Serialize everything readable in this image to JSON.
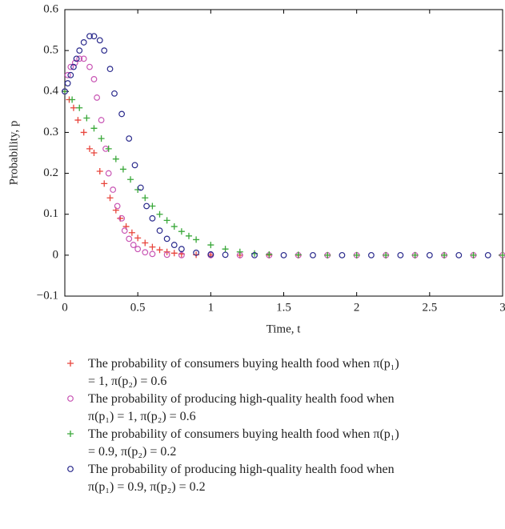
{
  "chart_data": {
    "type": "scatter",
    "xlabel": "Time, t",
    "ylabel": "Probability, p",
    "xlim": [
      0,
      3
    ],
    "ylim": [
      -0.1,
      0.6
    ],
    "xticks": [
      0,
      0.5,
      1,
      1.5,
      2,
      2.5,
      3
    ],
    "yticks": [
      {
        "value": -0.1,
        "label": "−0.1"
      },
      0,
      0.1,
      0.2,
      0.3,
      0.4,
      0.5,
      0.6
    ],
    "series": [
      {
        "name": "The probability of consumers buying health food when π(p₁) = 1, π(p₂) = 0.6",
        "color": "#e8453c",
        "marker": "plus",
        "x": [
          0,
          0.03,
          0.06,
          0.09,
          0.13,
          0.17,
          0.2,
          0.24,
          0.27,
          0.31,
          0.35,
          0.38,
          0.42,
          0.46,
          0.5,
          0.55,
          0.6,
          0.65,
          0.7,
          0.75,
          0.8,
          0.9,
          1.0,
          1.2,
          1.4,
          1.6,
          1.8,
          2.0,
          2.2,
          2.4,
          2.6,
          2.8,
          3.0
        ],
        "values": [
          0.4,
          0.38,
          0.36,
          0.33,
          0.3,
          0.26,
          0.25,
          0.205,
          0.175,
          0.14,
          0.11,
          0.09,
          0.07,
          0.055,
          0.042,
          0.03,
          0.02,
          0.013,
          0.008,
          0.005,
          0.003,
          0.001,
          0.0005,
          0,
          0,
          0,
          0,
          0,
          0,
          0,
          0,
          0,
          0
        ]
      },
      {
        "name": "The probability of producing high-quality health food when π(p₁) = 1, π(p₂) = 0.6",
        "color": "#c855b4",
        "marker": "circle",
        "x": [
          0,
          0.02,
          0.04,
          0.07,
          0.1,
          0.13,
          0.17,
          0.2,
          0.22,
          0.25,
          0.28,
          0.3,
          0.33,
          0.36,
          0.39,
          0.41,
          0.44,
          0.47,
          0.5,
          0.55,
          0.6,
          0.7,
          0.8,
          1.0,
          1.2,
          1.4,
          1.6,
          1.8,
          2.0,
          2.2,
          2.4,
          2.6,
          2.8,
          3.0
        ],
        "values": [
          0.4,
          0.44,
          0.46,
          0.47,
          0.48,
          0.48,
          0.46,
          0.43,
          0.385,
          0.33,
          0.26,
          0.2,
          0.16,
          0.12,
          0.09,
          0.06,
          0.04,
          0.025,
          0.015,
          0.007,
          0.003,
          0.001,
          0,
          0,
          0,
          0,
          0,
          0,
          0,
          0,
          0,
          0,
          0,
          0
        ]
      },
      {
        "name": "The probability of consumers buying health food when π(p₁) = 0.9, π(p₂) = 0.2",
        "color": "#3aa83a",
        "marker": "plus",
        "x": [
          0,
          0.05,
          0.1,
          0.15,
          0.2,
          0.25,
          0.3,
          0.35,
          0.4,
          0.45,
          0.5,
          0.55,
          0.6,
          0.65,
          0.7,
          0.75,
          0.8,
          0.85,
          0.9,
          1.0,
          1.1,
          1.2,
          1.3,
          1.4,
          1.6,
          1.8,
          2.0,
          2.2,
          2.4,
          2.6,
          2.8,
          3.0
        ],
        "values": [
          0.4,
          0.38,
          0.36,
          0.335,
          0.31,
          0.285,
          0.26,
          0.235,
          0.21,
          0.185,
          0.16,
          0.14,
          0.12,
          0.1,
          0.085,
          0.07,
          0.058,
          0.047,
          0.038,
          0.025,
          0.015,
          0.008,
          0.004,
          0.002,
          0.001,
          0,
          0,
          0,
          0,
          0,
          0,
          0
        ]
      },
      {
        "name": "The probability of producing high-quality health food when π(p₁) = 0.9, π(p₂) = 0.2",
        "color": "#2a2a8c",
        "marker": "circle",
        "x": [
          0,
          0.02,
          0.04,
          0.06,
          0.08,
          0.1,
          0.13,
          0.17,
          0.2,
          0.24,
          0.27,
          0.31,
          0.34,
          0.39,
          0.44,
          0.48,
          0.52,
          0.56,
          0.6,
          0.65,
          0.7,
          0.75,
          0.8,
          0.9,
          1.0,
          1.1,
          1.3,
          1.5,
          1.7,
          1.9,
          2.1,
          2.3,
          2.5,
          2.7,
          2.9
        ],
        "values": [
          0.4,
          0.42,
          0.44,
          0.46,
          0.48,
          0.5,
          0.52,
          0.535,
          0.535,
          0.525,
          0.5,
          0.455,
          0.395,
          0.345,
          0.285,
          0.22,
          0.165,
          0.12,
          0.09,
          0.06,
          0.04,
          0.025,
          0.015,
          0.006,
          0.002,
          0.001,
          0,
          0,
          0,
          0,
          0,
          0,
          0,
          0,
          0
        ]
      }
    ]
  }
}
